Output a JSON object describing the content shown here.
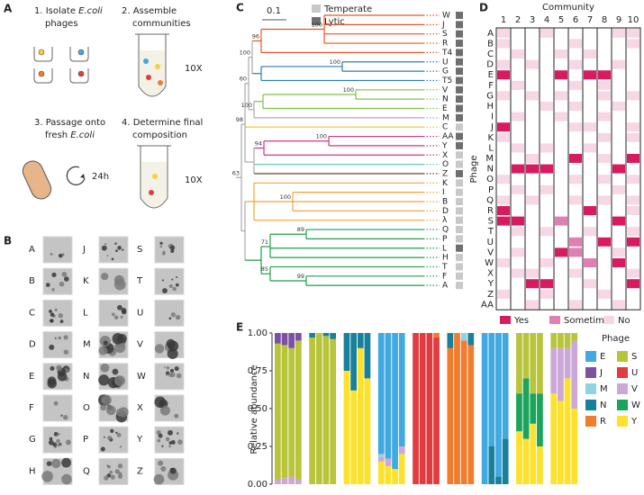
{
  "panel_a": {
    "letter": "A",
    "step1": [
      "1. Isolate ",
      "E.coli",
      "phages"
    ],
    "step2": [
      "2. Assemble",
      "communities"
    ],
    "step2_note": "10X",
    "step3": [
      "3. Passage onto",
      "fresh ",
      "E.coli"
    ],
    "step3_note": "24h",
    "step4": [
      "4. Determine final",
      "composition"
    ],
    "step4_note": "10X"
  },
  "panel_b": {
    "letter": "B",
    "columns": [
      [
        "A",
        "B",
        "C",
        "D",
        "E",
        "F",
        "G",
        "H"
      ],
      [
        "J",
        "K",
        "L",
        "M",
        "N",
        "O",
        "P",
        "Q"
      ],
      [
        "S",
        "T",
        "U",
        "V",
        "W",
        "X",
        "Y",
        "Z"
      ]
    ]
  },
  "panel_c": {
    "letter": "C",
    "scale_label": "0.1",
    "legend": [
      {
        "label": "Temperate",
        "color": "#c8c8c8"
      },
      {
        "label": "Lytic",
        "color": "#6e6e6e"
      }
    ],
    "leaves": [
      {
        "label": "W",
        "lifestyle": "Lytic"
      },
      {
        "label": "J",
        "lifestyle": "Lytic"
      },
      {
        "label": "S",
        "lifestyle": "Lytic"
      },
      {
        "label": "R",
        "lifestyle": "Lytic"
      },
      {
        "label": "T4",
        "lifestyle": "Lytic"
      },
      {
        "label": "U",
        "lifestyle": "Lytic"
      },
      {
        "label": "G",
        "lifestyle": "Lytic"
      },
      {
        "label": "T5",
        "lifestyle": "Lytic"
      },
      {
        "label": "V",
        "lifestyle": "Lytic"
      },
      {
        "label": "N",
        "lifestyle": "Lytic"
      },
      {
        "label": "E",
        "lifestyle": "Lytic"
      },
      {
        "label": "M",
        "lifestyle": "Lytic"
      },
      {
        "label": "C",
        "lifestyle": "Temperate"
      },
      {
        "label": "AA",
        "lifestyle": "Lytic"
      },
      {
        "label": "Y",
        "lifestyle": "Lytic"
      },
      {
        "label": "X",
        "lifestyle": "Temperate"
      },
      {
        "label": "O",
        "lifestyle": "Temperate"
      },
      {
        "label": "Z",
        "lifestyle": "Lytic"
      },
      {
        "label": "K",
        "lifestyle": "Temperate"
      },
      {
        "label": "I",
        "lifestyle": "Temperate"
      },
      {
        "label": "B",
        "lifestyle": "Temperate"
      },
      {
        "label": "D",
        "lifestyle": "Temperate"
      },
      {
        "label": "λ",
        "lifestyle": "Temperate"
      },
      {
        "label": "Q",
        "lifestyle": "Temperate"
      },
      {
        "label": "P",
        "lifestyle": "Temperate"
      },
      {
        "label": "L",
        "lifestyle": "Lytic"
      },
      {
        "label": "H",
        "lifestyle": "Temperate"
      },
      {
        "label": "T",
        "lifestyle": "Temperate"
      },
      {
        "label": "F",
        "lifestyle": "Temperate"
      },
      {
        "label": "A",
        "lifestyle": "Temperate"
      }
    ],
    "bootstrap": [
      100,
      96,
      100,
      100,
      100,
      60,
      100,
      98,
      100,
      94,
      63,
      100,
      71,
      89,
      85,
      99
    ]
  },
  "panel_d": {
    "letter": "D",
    "title": "Community",
    "ylabel": "Phage",
    "columns": [
      1,
      2,
      3,
      4,
      5,
      6,
      7,
      8,
      9,
      10
    ],
    "rows": [
      "A",
      "B",
      "C",
      "D",
      "E",
      "F",
      "G",
      "H",
      "I",
      "J",
      "K",
      "L",
      "M",
      "N",
      "O",
      "P",
      "Q",
      "R",
      "S",
      "T",
      "U",
      "V",
      "W",
      "X",
      "Y",
      "Z",
      "AA"
    ],
    "cells": [
      [
        "No",
        null,
        null,
        "No",
        null,
        null,
        null,
        null,
        "No",
        "No"
      ],
      [
        "No",
        null,
        null,
        null,
        null,
        "No",
        null,
        null,
        null,
        "No"
      ],
      [
        null,
        "No",
        null,
        null,
        "No",
        null,
        "No",
        null,
        null,
        null
      ],
      [
        "No",
        null,
        "No",
        null,
        null,
        "No",
        null,
        null,
        "No",
        null
      ],
      [
        "Yes",
        null,
        null,
        null,
        "Yes",
        null,
        "Yes",
        "Yes",
        null,
        null
      ],
      [
        null,
        "No",
        null,
        null,
        null,
        "No",
        null,
        "No",
        null,
        null
      ],
      [
        "No",
        null,
        "No",
        null,
        "No",
        null,
        null,
        "No",
        null,
        "No"
      ],
      [
        null,
        null,
        null,
        "No",
        null,
        "No",
        null,
        null,
        "No",
        null
      ],
      [
        null,
        "No",
        null,
        null,
        "No",
        null,
        null,
        "No",
        null,
        null
      ],
      [
        "Yes",
        null,
        null,
        null,
        null,
        "No",
        "No",
        null,
        null,
        "No"
      ],
      [
        "No",
        null,
        null,
        null,
        null,
        null,
        null,
        "No",
        null,
        "No"
      ],
      [
        null,
        "No",
        null,
        "No",
        null,
        null,
        "No",
        null,
        null,
        null
      ],
      [
        null,
        null,
        "No",
        null,
        null,
        "Yes",
        null,
        "No",
        null,
        "Yes"
      ],
      [
        null,
        "Yes",
        "Yes",
        "Yes",
        null,
        null,
        null,
        null,
        "Yes",
        null
      ],
      [
        "No",
        null,
        null,
        null,
        null,
        "No",
        null,
        "No",
        null,
        "No"
      ],
      [
        null,
        "No",
        null,
        "No",
        null,
        null,
        null,
        null,
        "No",
        null
      ],
      [
        "No",
        null,
        "No",
        null,
        null,
        "No",
        null,
        "No",
        null,
        "No"
      ],
      [
        "Yes",
        null,
        null,
        null,
        null,
        null,
        "Yes",
        null,
        null,
        "No"
      ],
      [
        "Yes",
        "Yes",
        null,
        null,
        "Sometimes",
        null,
        null,
        null,
        "Yes",
        null
      ],
      [
        null,
        "No",
        null,
        "No",
        null,
        null,
        "No",
        null,
        null,
        "No"
      ],
      [
        null,
        null,
        null,
        null,
        null,
        "Sometimes",
        null,
        "Yes",
        null,
        "Yes"
      ],
      [
        null,
        "No",
        null,
        null,
        "Yes",
        "Sometimes",
        null,
        null,
        "No",
        null
      ],
      [
        "No",
        null,
        null,
        "No",
        null,
        null,
        "Sometimes",
        null,
        "Yes",
        null
      ],
      [
        null,
        "No",
        "No",
        null,
        null,
        "No",
        null,
        null,
        null,
        "No"
      ],
      [
        null,
        null,
        "Yes",
        "Yes",
        null,
        null,
        "No",
        null,
        null,
        "Yes"
      ],
      [
        "No",
        null,
        null,
        "No",
        null,
        null,
        null,
        "No",
        null,
        null
      ],
      [
        null,
        null,
        "No",
        null,
        null,
        "No",
        null,
        null,
        "No",
        null
      ]
    ],
    "legend": [
      {
        "label": "Yes",
        "color": "#d81b60"
      },
      {
        "label": "Sometimes",
        "color": "#e07fb2"
      },
      {
        "label": "No",
        "color": "#f7d6e5"
      }
    ]
  },
  "chart_data": {
    "type": "stacked_bar",
    "letter": "E",
    "ylabel": "Relative abundance",
    "legend_title": "Phage",
    "categories": [
      null,
      null,
      null,
      null,
      null,
      null,
      null,
      null,
      null,
      null,
      null,
      null,
      null,
      null,
      null,
      null,
      null,
      null,
      null,
      null,
      null,
      null,
      null,
      null,
      null,
      null,
      null,
      null,
      null,
      null,
      null,
      null,
      null,
      null,
      null,
      null
    ],
    "ylim": [
      0,
      1
    ],
    "yticks": [
      {
        "value": 0,
        "label": "0.00"
      },
      {
        "value": 0.25,
        "label": "0.25"
      },
      {
        "value": 0.5,
        "label": "0.50"
      },
      {
        "value": 0.75,
        "label": "0.75"
      },
      {
        "value": 1,
        "label": "1.00"
      }
    ],
    "series": [
      {
        "name": "E",
        "color": "#3fa9e0",
        "values": [
          0,
          0,
          0,
          0,
          0,
          0,
          0,
          0,
          0,
          0,
          0,
          0,
          0.8,
          0.83,
          0.9,
          0.75,
          0,
          0,
          0,
          0,
          0,
          0,
          0,
          0,
          1,
          0.75,
          0.95,
          0.7,
          0,
          0,
          0,
          0,
          0,
          0,
          0,
          0
        ]
      },
      {
        "name": "J",
        "color": "#7b52a3",
        "values": [
          0.07,
          0.08,
          0.1,
          0.05,
          0,
          0,
          0,
          0,
          0,
          0,
          0,
          0,
          0,
          0,
          0,
          0,
          0,
          0,
          0,
          0,
          0,
          0,
          0,
          0,
          0,
          0,
          0,
          0,
          0,
          0,
          0,
          0,
          0,
          0,
          0,
          0
        ]
      },
      {
        "name": "M",
        "color": "#8fd4e0",
        "values": [
          0,
          0,
          0,
          0,
          0,
          0,
          0,
          0,
          0,
          0,
          0,
          0,
          0.02,
          0,
          0,
          0,
          0,
          0,
          0,
          0,
          0,
          0,
          0.05,
          0,
          0,
          0,
          0,
          0,
          0,
          0,
          0,
          0,
          0,
          0,
          0,
          0
        ]
      },
      {
        "name": "N",
        "color": "#17809b",
        "values": [
          0,
          0,
          0,
          0,
          0.03,
          0,
          0.02,
          0.04,
          0.25,
          0.38,
          0.1,
          0.3,
          0,
          0,
          0,
          0,
          0,
          0,
          0,
          0,
          0.1,
          0,
          0,
          0.08,
          0,
          0.25,
          0.05,
          0.3,
          0,
          0,
          0,
          0,
          0,
          0,
          0,
          0
        ]
      },
      {
        "name": "R",
        "color": "#ef7d2d",
        "values": [
          0,
          0,
          0,
          0,
          0,
          0,
          0,
          0,
          0,
          0,
          0,
          0,
          0,
          0,
          0,
          0,
          0,
          0,
          0,
          0.03,
          0.9,
          1,
          0.95,
          0.92,
          0,
          0,
          0,
          0,
          0,
          0,
          0,
          0,
          0,
          0,
          0,
          0
        ]
      },
      {
        "name": "S",
        "color": "#b8c53b",
        "values": [
          0.9,
          0.88,
          0.85,
          0.92,
          0.97,
          1,
          0.98,
          0.96,
          0,
          0,
          0,
          0,
          0,
          0,
          0,
          0,
          0,
          0,
          0,
          0,
          0,
          0,
          0,
          0,
          0,
          0,
          0,
          0,
          0.4,
          0.3,
          0.4,
          0.4,
          0.1,
          0.1,
          0.1,
          0.05
        ]
      },
      {
        "name": "U",
        "color": "#e23b40",
        "values": [
          0,
          0,
          0,
          0,
          0,
          0,
          0,
          0,
          0,
          0,
          0,
          0,
          0,
          0,
          0,
          0,
          1,
          1,
          1,
          0.97,
          0,
          0,
          0,
          0,
          0,
          0,
          0,
          0,
          0,
          0,
          0,
          0,
          0,
          0,
          0,
          0
        ]
      },
      {
        "name": "V",
        "color": "#cba8d8",
        "values": [
          0.03,
          0.04,
          0.05,
          0.03,
          0,
          0,
          0,
          0,
          0,
          0,
          0,
          0,
          0.03,
          0.05,
          0,
          0.05,
          0,
          0,
          0,
          0,
          0,
          0,
          0,
          0,
          0,
          0,
          0,
          0,
          0,
          0,
          0,
          0,
          0.3,
          0.35,
          0.2,
          0.45
        ]
      },
      {
        "name": "W",
        "color": "#1ba45b",
        "values": [
          0,
          0,
          0,
          0,
          0,
          0,
          0,
          0,
          0,
          0,
          0,
          0,
          0,
          0,
          0,
          0,
          0,
          0,
          0,
          0,
          0,
          0,
          0,
          0,
          0,
          0,
          0,
          0,
          0.25,
          0.4,
          0.2,
          0.35,
          0,
          0,
          0,
          0
        ]
      },
      {
        "name": "Y",
        "color": "#fde12a",
        "values": [
          0,
          0,
          0,
          0,
          0,
          0,
          0,
          0,
          0.75,
          0.62,
          0.9,
          0.7,
          0.15,
          0.12,
          0.1,
          0.2,
          0,
          0,
          0,
          0,
          0,
          0,
          0,
          0,
          0,
          0,
          0,
          0,
          0.35,
          0.3,
          0.4,
          0.25,
          0.6,
          0.55,
          0.7,
          0.5
        ]
      }
    ]
  }
}
